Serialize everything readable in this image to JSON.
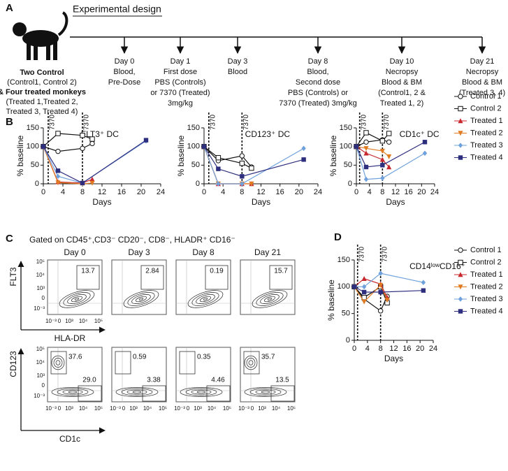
{
  "panel_a": {
    "label": "A",
    "title": "Experimental design",
    "subjects": [
      {
        "text": "Two Control",
        "bold": true
      },
      {
        "text": "(Control1, Control 2)",
        "bold": false
      },
      {
        "text": "& Four treated monkeys",
        "bold": true
      },
      {
        "text": "(Treated 1,Treated 2,",
        "bold": false
      },
      {
        "text": "Treated 3, Treated 4)",
        "bold": false
      }
    ],
    "timepoints": [
      {
        "lines": [
          "Day 0",
          "Blood,",
          "Pre-Dose"
        ]
      },
      {
        "lines": [
          "Day 1",
          "First dose",
          "PBS (Controls)",
          "or 7370 (Treated)",
          "3mg/kg"
        ]
      },
      {
        "lines": [
          "Day 3",
          "Blood"
        ]
      },
      {
        "lines": [
          "Day 8",
          "Blood,",
          "Second dose",
          "PBS (Controls) or",
          "7370 (Treated) 3mg/kg"
        ]
      },
      {
        "lines": [
          "Day 10",
          "Necropsy",
          "Blood & BM",
          "(Control1, 2 &",
          "Treated 1, 2)"
        ]
      },
      {
        "lines": [
          "Day 21",
          "Necropsy",
          "Blood & BM",
          "(Treated 3, 4)"
        ]
      }
    ]
  },
  "panel_labels": {
    "b": "B",
    "d": "D"
  },
  "chart_data": [
    {
      "type": "line",
      "title": "FLT3⁺ DC",
      "x_label": "Days",
      "y_label": "% baseline",
      "xlim": [
        0,
        24
      ],
      "xticks": [
        0,
        4,
        8,
        12,
        16,
        20,
        24
      ],
      "ylim": [
        0,
        150
      ],
      "yticks": [
        0,
        50,
        100,
        150
      ],
      "legend": false,
      "annotations": [
        {
          "x": 1,
          "label": "7370"
        },
        {
          "x": 8,
          "label": "7370"
        }
      ],
      "series": [
        {
          "name": "Control 1",
          "color": "#111111",
          "marker": "circle-open",
          "x": [
            0,
            3,
            8,
            10
          ],
          "values": [
            100,
            87,
            95,
            108
          ]
        },
        {
          "name": "Control 2",
          "color": "#111111",
          "marker": "square-open",
          "x": [
            0,
            3,
            8,
            10
          ],
          "values": [
            100,
            135,
            130,
            120
          ]
        },
        {
          "name": "Treated 1",
          "color": "#c8282d",
          "marker": "triangle-up",
          "x": [
            0,
            3,
            8,
            10
          ],
          "values": [
            100,
            5,
            2,
            12
          ]
        },
        {
          "name": "Treated 2",
          "color": "#e07b22",
          "marker": "triangle-down",
          "x": [
            0,
            3,
            8,
            10
          ],
          "values": [
            100,
            3,
            0,
            2
          ]
        },
        {
          "name": "Treated 3",
          "color": "#6fa1dc",
          "marker": "diamond",
          "x": [
            0,
            3,
            8,
            21
          ],
          "values": [
            100,
            20,
            2,
            115
          ]
        },
        {
          "name": "Treated 4",
          "color": "#2e2e7f",
          "marker": "square",
          "x": [
            0,
            3,
            8,
            21
          ],
          "values": [
            100,
            35,
            2,
            117
          ]
        }
      ]
    },
    {
      "type": "line",
      "title": "CD123⁺ DC",
      "x_label": "Days",
      "y_label": "% baseline",
      "xlim": [
        0,
        24
      ],
      "xticks": [
        0,
        4,
        8,
        12,
        16,
        20,
        24
      ],
      "ylim": [
        0,
        150
      ],
      "yticks": [
        0,
        50,
        100,
        150
      ],
      "legend": false,
      "annotations": [
        {
          "x": 1,
          "label": "7370"
        },
        {
          "x": 8,
          "label": "7370"
        }
      ],
      "series": [
        {
          "name": "Control 1",
          "color": "#111111",
          "marker": "circle-open",
          "x": [
            0,
            3,
            8,
            10
          ],
          "values": [
            100,
            62,
            75,
            45
          ]
        },
        {
          "name": "Control 2",
          "color": "#111111",
          "marker": "square-open",
          "x": [
            0,
            3,
            8,
            10
          ],
          "values": [
            100,
            70,
            55,
            42
          ]
        },
        {
          "name": "Treated 1",
          "color": "#c8282d",
          "marker": "triangle-up",
          "x": [
            0,
            3,
            8,
            10
          ],
          "values": [
            100,
            0,
            0,
            0
          ]
        },
        {
          "name": "Treated 2",
          "color": "#e07b22",
          "marker": "triangle-down",
          "x": [
            0,
            3,
            8,
            10
          ],
          "values": [
            100,
            0,
            0,
            0
          ]
        },
        {
          "name": "Treated 3",
          "color": "#6fa1dc",
          "marker": "diamond",
          "x": [
            0,
            3,
            8,
            21
          ],
          "values": [
            100,
            0,
            0,
            95
          ]
        },
        {
          "name": "Treated 4",
          "color": "#2e2e7f",
          "marker": "square",
          "x": [
            0,
            3,
            8,
            21
          ],
          "values": [
            100,
            40,
            20,
            65
          ]
        }
      ]
    },
    {
      "type": "line",
      "title": "CD1c⁺ DC",
      "x_label": "Days",
      "y_label": "% baseline",
      "xlim": [
        0,
        24
      ],
      "xticks": [
        0,
        4,
        8,
        12,
        16,
        20,
        24
      ],
      "ylim": [
        0,
        150
      ],
      "yticks": [
        0,
        50,
        100,
        150
      ],
      "legend": true,
      "annotations": [
        {
          "x": 1,
          "label": "7370"
        },
        {
          "x": 8,
          "label": "7370"
        }
      ],
      "series": [
        {
          "name": "Control 1",
          "color": "#111111",
          "marker": "circle-open",
          "x": [
            0,
            3,
            8,
            10
          ],
          "values": [
            100,
            112,
            118,
            112
          ]
        },
        {
          "name": "Control 2",
          "color": "#111111",
          "marker": "square-open",
          "x": [
            0,
            3,
            8,
            10
          ],
          "values": [
            100,
            137,
            115,
            135
          ]
        },
        {
          "name": "Treated 1",
          "color": "#c8282d",
          "marker": "triangle-up",
          "x": [
            0,
            3,
            8,
            10
          ],
          "values": [
            100,
            82,
            65,
            45
          ]
        },
        {
          "name": "Treated 2",
          "color": "#e07b22",
          "marker": "triangle-down",
          "x": [
            0,
            3,
            8,
            10
          ],
          "values": [
            100,
            95,
            88,
            73
          ]
        },
        {
          "name": "Treated 3",
          "color": "#6fa1dc",
          "marker": "diamond",
          "x": [
            0,
            3,
            8,
            21
          ],
          "values": [
            100,
            12,
            15,
            82
          ]
        },
        {
          "name": "Treated 4",
          "color": "#2e2e7f",
          "marker": "square",
          "x": [
            0,
            3,
            8,
            21
          ],
          "values": [
            100,
            45,
            50,
            112
          ]
        }
      ]
    },
    {
      "type": "line",
      "title": "CD14ˡᵒʷCD16⁺",
      "x_label": "Days",
      "y_label": "% baseline",
      "xlim": [
        0,
        24
      ],
      "xticks": [
        0,
        4,
        8,
        12,
        16,
        20,
        24
      ],
      "ylim": [
        0,
        150
      ],
      "yticks": [
        0,
        50,
        100,
        150
      ],
      "legend": true,
      "annotations": [
        {
          "x": 1,
          "label": "7370"
        },
        {
          "x": 8,
          "label": "7370"
        }
      ],
      "series": [
        {
          "name": "Control 1",
          "color": "#111111",
          "marker": "circle-open",
          "x": [
            0,
            3,
            8,
            10
          ],
          "values": [
            100,
            77,
            55,
            82
          ]
        },
        {
          "name": "Control 2",
          "color": "#111111",
          "marker": "square-open",
          "x": [
            0,
            3,
            8,
            10
          ],
          "values": [
            100,
            80,
            100,
            70
          ]
        },
        {
          "name": "Treated 1",
          "color": "#c8282d",
          "marker": "triangle-up",
          "x": [
            0,
            3,
            8,
            10
          ],
          "values": [
            100,
            115,
            105,
            80
          ]
        },
        {
          "name": "Treated 2",
          "color": "#e07b22",
          "marker": "triangle-down",
          "x": [
            0,
            3,
            8,
            10
          ],
          "values": [
            100,
            72,
            103,
            75
          ]
        },
        {
          "name": "Treated 3",
          "color": "#6fa1dc",
          "marker": "diamond",
          "x": [
            0,
            3,
            8,
            21
          ],
          "values": [
            100,
            100,
            125,
            108
          ]
        },
        {
          "name": "Treated 4",
          "color": "#2e2e7f",
          "marker": "square",
          "x": [
            0,
            3,
            8,
            21
          ],
          "values": [
            100,
            90,
            90,
            93
          ]
        }
      ]
    }
  ],
  "panel_c": {
    "label": "C",
    "title": "Gated on CD45⁺,CD3⁻ CD20⁻, CD8⁻, HLADR⁺ CD16⁻",
    "days": [
      "Day 0",
      "Day 3",
      "Day 8",
      "Day 21"
    ],
    "yticks": [
      "10⁵",
      "10⁴",
      "10³",
      "0",
      "10⁻³"
    ],
    "xticks": [
      "10⁻³",
      "0",
      "10³",
      "10⁴",
      "10⁵"
    ],
    "rows": [
      {
        "y_label": "FLT3",
        "x_label": "HLA-DR",
        "gates": [
          [
            "13.7"
          ],
          [
            "2.84"
          ],
          [
            "0.19"
          ],
          [
            "15.7"
          ]
        ]
      },
      {
        "y_label": "CD123",
        "x_label": "CD1c",
        "gates": [
          [
            "37.6",
            "29.0"
          ],
          [
            "0.59",
            "3.38"
          ],
          [
            "0.35",
            "4.46"
          ],
          [
            "35.7",
            "13.5"
          ]
        ]
      }
    ]
  }
}
